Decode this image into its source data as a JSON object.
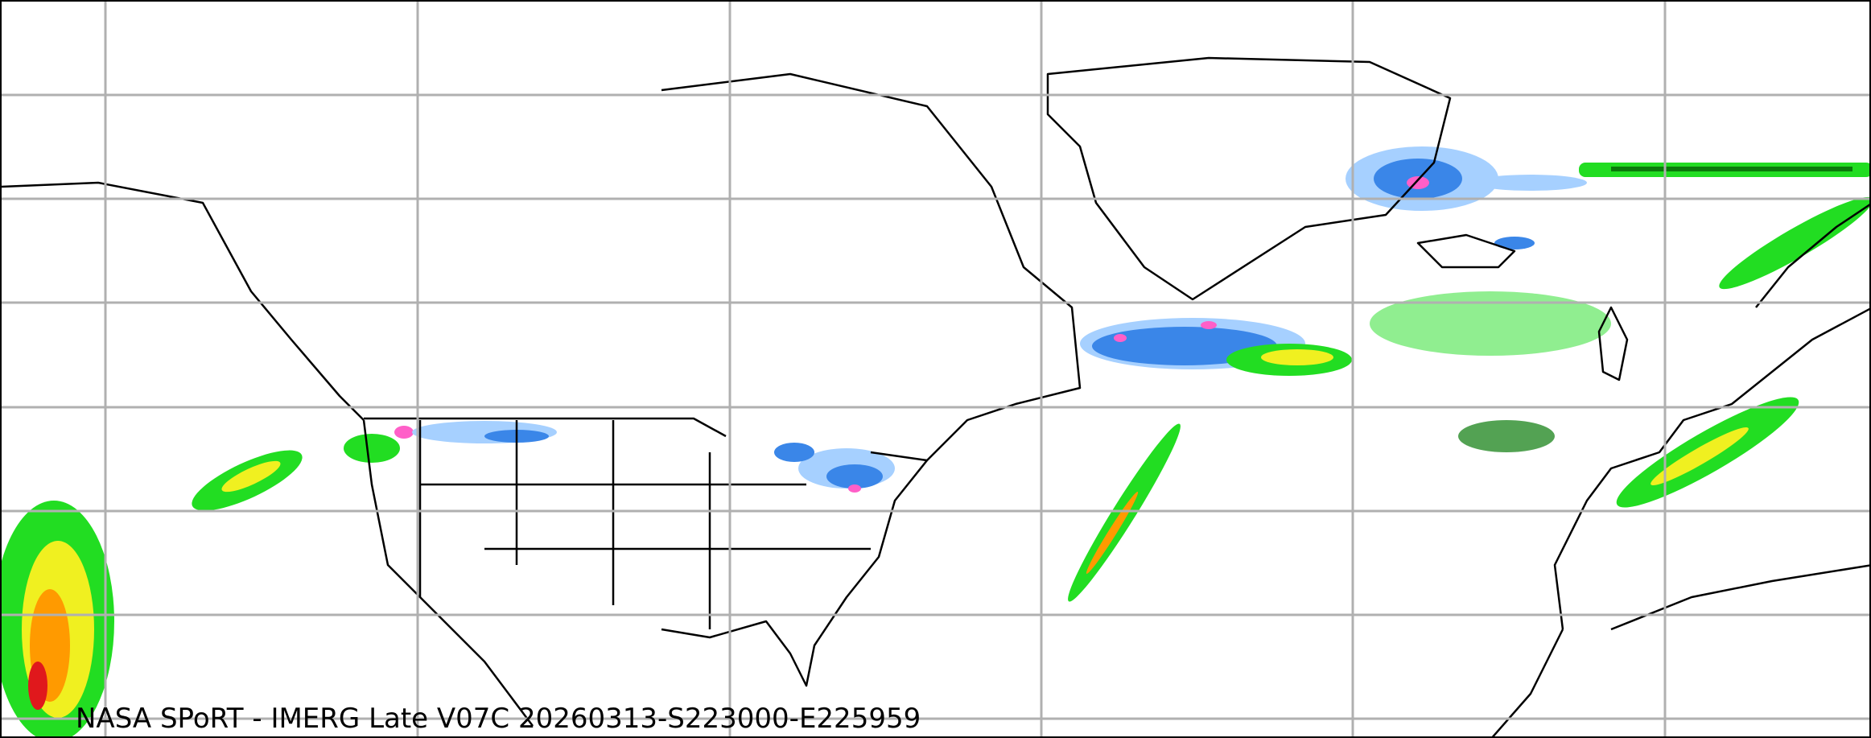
{
  "caption": "NASA SPoRT - IMERG Late V07C 20260313-S223000-E225959",
  "colors": {
    "light_precip": "#a6d0ff",
    "blue_precip": "#3a86e8",
    "pink_precip": "#ff5fc8",
    "green_precip": "#22dd22",
    "dark_green_precip": "#0a7a0a",
    "yellow_precip": "#f0f020",
    "orange_precip": "#ff9a00",
    "red_precip": "#e0181c",
    "gridline": "#b0b0b0",
    "coastline": "#000000"
  }
}
